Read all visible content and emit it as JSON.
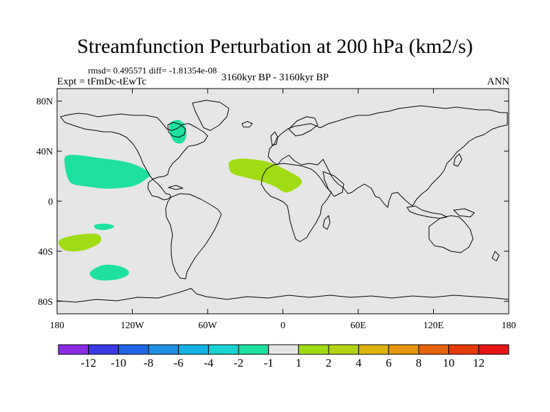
{
  "chart_data": {
    "type": "contour-map",
    "title": "Streamfunction Perturbation at 200 hPa (km2/s)",
    "stats_label": "rmsd= 0.495571  diff= -1.81354e-08",
    "experiment_label": "Expt = tFmDc-tEwTc",
    "period_label": "3160kyr BP - 3160kyr BP",
    "season_label": "ANN",
    "projection": "cylindrical-equidistant",
    "xlim": [
      -180,
      180
    ],
    "ylim": [
      -90,
      90
    ],
    "x_ticks": [
      {
        "value": -180,
        "label": "180"
      },
      {
        "value": -120,
        "label": "120W"
      },
      {
        "value": -60,
        "label": "60W"
      },
      {
        "value": 0,
        "label": "0"
      },
      {
        "value": 60,
        "label": "60E"
      },
      {
        "value": 120,
        "label": "120E"
      },
      {
        "value": 180,
        "label": "180"
      }
    ],
    "y_ticks": [
      {
        "value": 80,
        "label": "80N"
      },
      {
        "value": 40,
        "label": "40N"
      },
      {
        "value": 0,
        "label": "0"
      },
      {
        "value": -40,
        "label": "40S"
      },
      {
        "value": -80,
        "label": "80S"
      }
    ],
    "background_color": "#e6e6e6",
    "colorbar": {
      "labels": [
        "-12",
        "-10",
        "-8",
        "-6",
        "-4",
        "-2",
        "-1",
        "1",
        "2",
        "4",
        "6",
        "8",
        "10",
        "12"
      ],
      "colors": [
        "#8a2be2",
        "#3a3ae6",
        "#1f66e6",
        "#1c8fe6",
        "#15b2e6",
        "#1ad2d2",
        "#1ee0a0",
        "#e6e6e6",
        "#a0dc14",
        "#b4d214",
        "#dcb40a",
        "#e6960a",
        "#e6640a",
        "#e63c0a",
        "#e61414"
      ]
    },
    "anomaly_regions": [
      {
        "name": "north-america-great-lakes",
        "value_range": "-2 to -1",
        "color": "#1ee0a0",
        "polygon": [
          [
            -90,
            62
          ],
          [
            -84,
            65
          ],
          [
            -79,
            62
          ],
          [
            -77,
            55
          ],
          [
            -78,
            49
          ],
          [
            -82,
            46
          ],
          [
            -87,
            48
          ],
          [
            -90,
            54
          ]
        ]
      },
      {
        "name": "north-pacific",
        "value_range": "-2 to -1",
        "color": "#1ee0a0",
        "polygon": [
          [
            -173,
            36
          ],
          [
            -165,
            37
          ],
          [
            -150,
            35
          ],
          [
            -128,
            32
          ],
          [
            -115,
            28
          ],
          [
            -106,
            22
          ],
          [
            -110,
            17
          ],
          [
            -120,
            12
          ],
          [
            -140,
            10
          ],
          [
            -158,
            12
          ],
          [
            -168,
            14
          ],
          [
            -172,
            20
          ],
          [
            -174,
            30
          ]
        ]
      },
      {
        "name": "north-atlantic-africa",
        "value_range": "1 to 2",
        "color": "#a0dc14",
        "polygon": [
          [
            -42,
            32
          ],
          [
            -33,
            34
          ],
          [
            -20,
            33
          ],
          [
            -8,
            30
          ],
          [
            8,
            22
          ],
          [
            14,
            18
          ],
          [
            14,
            13
          ],
          [
            3,
            7
          ],
          [
            -7,
            12
          ],
          [
            -18,
            16
          ],
          [
            -30,
            19
          ],
          [
            -40,
            22
          ],
          [
            -43,
            27
          ]
        ]
      },
      {
        "name": "south-pacific-small",
        "value_range": "-2 to -1",
        "color": "#1ee0a0",
        "polygon": [
          [
            -150,
            -19
          ],
          [
            -143,
            -18
          ],
          [
            -136,
            -19
          ],
          [
            -135,
            -21
          ],
          [
            -142,
            -23
          ],
          [
            -149,
            -22
          ]
        ]
      },
      {
        "name": "south-pacific-west",
        "value_range": "1 to 2",
        "color": "#a0dc14",
        "polygon": [
          [
            -178,
            -31
          ],
          [
            -165,
            -27
          ],
          [
            -150,
            -26
          ],
          [
            -145,
            -29
          ],
          [
            -147,
            -34
          ],
          [
            -158,
            -39
          ],
          [
            -170,
            -40
          ],
          [
            -177,
            -37
          ]
        ]
      },
      {
        "name": "south-pacific-south",
        "value_range": "-2 to -1",
        "color": "#1ee0a0",
        "polygon": [
          [
            -153,
            -56
          ],
          [
            -143,
            -51
          ],
          [
            -130,
            -52
          ],
          [
            -123,
            -56
          ],
          [
            -125,
            -60
          ],
          [
            -135,
            -63
          ],
          [
            -147,
            -63
          ],
          [
            -153,
            -60
          ]
        ]
      }
    ]
  }
}
